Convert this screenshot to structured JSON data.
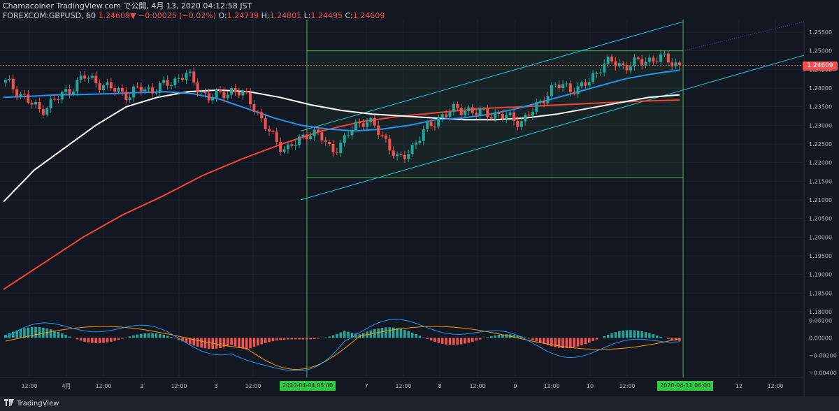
{
  "header": {
    "line1": "Chamacoiner TradingView.com で公開, 4月 13, 2020 04:12:58 JST",
    "symbol": "FOREXCOM:GBPUSD, 60",
    "last": "1.24609",
    "arrow": "▼",
    "change": "−0.00025 (−0.02%)",
    "o_label": "O:",
    "o": "1.24739",
    "h_label": "H:",
    "h": "1.24801",
    "l_label": "L:",
    "l": "1.24495",
    "c_label": "C:",
    "c": "1.24609"
  },
  "footer": {
    "brand": "TradingView"
  },
  "colors": {
    "bg": "#131722",
    "up": "#26a69a",
    "down": "#ef5350",
    "ma_blue": "#2196f3",
    "ma_white": "#ffffff",
    "ma_red": "#f44336",
    "channel": "#26c6da",
    "box": "#4caf50",
    "bollinger": "#26a69a",
    "macd_line": "#2196f3",
    "signal_line": "#ff9800"
  },
  "chart_data": {
    "type": "candlestick",
    "ylim": [
      1.18,
      1.258
    ],
    "y_ticks": [
      "1.25500",
      "1.25000",
      "1.24500",
      "1.24000",
      "1.23500",
      "1.23000",
      "1.22500",
      "1.22000",
      "1.21500",
      "1.21000",
      "1.20500",
      "1.20000",
      "1.19500",
      "1.19000",
      "1.18500",
      "1.18000"
    ],
    "y_tick_values": [
      1.255,
      1.25,
      1.245,
      1.24,
      1.235,
      1.23,
      1.225,
      1.22,
      1.215,
      1.21,
      1.205,
      1.2,
      1.195,
      1.19,
      1.185,
      1.18
    ],
    "last_price": "1.24609",
    "x_ticks": [
      "12:00",
      "4月",
      "12:00",
      "2",
      "12:00",
      "3",
      "12:00",
      "7",
      "12:00",
      "8",
      "12:00",
      "9",
      "12:00",
      "10",
      "12:00",
      "12",
      "12:00"
    ],
    "x_tick_positions": [
      42,
      95,
      148,
      203,
      256,
      309,
      362,
      524,
      577,
      629,
      683,
      737,
      789,
      844,
      897,
      1057,
      1109
    ],
    "time_labels": [
      "2020-04-04  05:00",
      "2020-04-11  06:00"
    ],
    "close_path": [
      1.2415,
      1.2395,
      1.2365,
      1.234,
      1.236,
      1.238,
      1.2405,
      1.243,
      1.242,
      1.24,
      1.2395,
      1.238,
      1.24,
      1.2395,
      1.2405,
      1.242,
      1.244,
      1.2405,
      1.2375,
      1.238,
      1.2395,
      1.2385,
      1.236,
      1.23,
      1.226,
      1.2235,
      1.2255,
      1.2285,
      1.227,
      1.2235,
      1.225,
      1.23,
      1.2315,
      1.229,
      1.2255,
      1.22,
      1.2235,
      1.2275,
      1.2305,
      1.233,
      1.234,
      1.2345,
      1.233,
      1.2335,
      1.2325,
      1.232,
      1.231,
      1.234,
      1.238,
      1.2405,
      1.2405,
      1.2395,
      1.242,
      1.246,
      1.247,
      1.246,
      1.2465,
      1.2475,
      1.248,
      1.2475,
      1.2461
    ],
    "ma_blue": [
      1.2375,
      1.2378,
      1.2382,
      1.2383,
      1.2385,
      1.2388,
      1.239,
      1.2385,
      1.237,
      1.2345,
      1.232,
      1.23,
      1.229,
      1.2285,
      1.229,
      1.23,
      1.2315,
      1.232,
      1.233,
      1.2345,
      1.2365,
      1.2385,
      1.2405,
      1.2425,
      1.2438,
      1.2448
    ],
    "ma_white": [
      1.2095,
      1.218,
      1.224,
      1.23,
      1.235,
      1.2375,
      1.239,
      1.2395,
      1.239,
      1.2375,
      1.2355,
      1.234,
      1.233,
      1.2325,
      1.232,
      1.2315,
      1.2315,
      1.232,
      1.233,
      1.2345,
      1.236,
      1.2375,
      1.2382
    ],
    "ma_red": [
      1.186,
      1.193,
      1.2,
      1.206,
      1.211,
      1.2165,
      1.221,
      1.225,
      1.2285,
      1.231,
      1.2325,
      1.2335,
      1.2345,
      1.235,
      1.2355,
      1.236,
      1.2365,
      1.2368
    ],
    "channel_upper": [
      [
        1.2285,
        1.2578
      ]
    ],
    "channel_lower": [
      [
        1.21,
        1.2488
      ]
    ],
    "box_range": [
      1.216,
      1.25
    ],
    "macd": {
      "y_ticks": [
        "0.00200",
        "0.00000",
        "−0.00200",
        "−0.00400"
      ],
      "y_tick_values": [
        0.002,
        0.0,
        -0.002,
        -0.004
      ]
    }
  }
}
